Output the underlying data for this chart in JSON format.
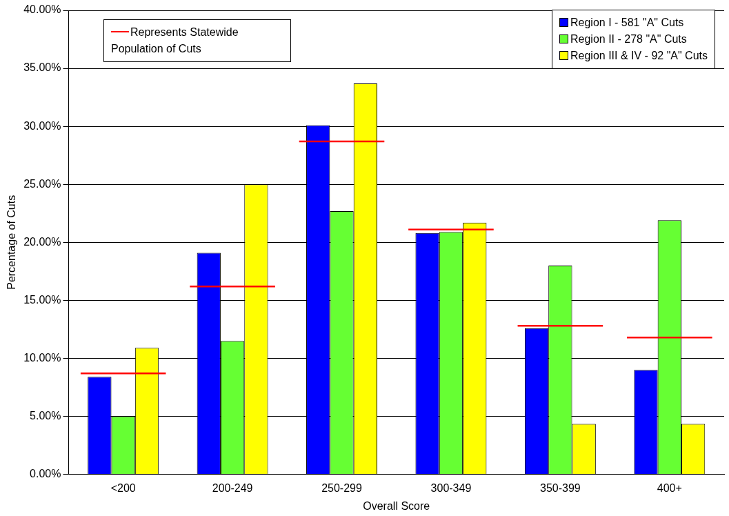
{
  "chart_data": {
    "type": "bar",
    "xlabel": "Overall Score",
    "ylabel": "Percentage of Cuts",
    "categories": [
      "<200",
      "200-249",
      "250-299",
      "300-349",
      "350-399",
      "400+"
    ],
    "series": [
      {
        "name": "Region I - 581 \"A\" Cuts",
        "color": "#0000ff",
        "values": [
          8.4,
          19.1,
          30.1,
          20.8,
          12.6,
          9.0
        ]
      },
      {
        "name": "Region II - 278 \"A\" Cuts",
        "color": "#66ff33",
        "values": [
          5.0,
          11.5,
          22.7,
          20.9,
          18.0,
          21.9
        ]
      },
      {
        "name": "Region III & IV - 92 \"A\" Cuts",
        "color": "#ffff00",
        "values": [
          10.9,
          25.0,
          33.7,
          21.7,
          4.35,
          4.35
        ]
      }
    ],
    "ref_lines": [
      {
        "axis": "y",
        "value": 8.7,
        "color": "#ff0000",
        "label": "Represents Statewide Population of Cuts"
      },
      {
        "axis": "y",
        "value": 16.2,
        "color": "#ff0000"
      },
      {
        "axis": "y",
        "value": 28.7,
        "color": "#ff0000"
      },
      {
        "axis": "y",
        "value": 21.1,
        "color": "#ff0000"
      },
      {
        "axis": "y",
        "value": 12.8,
        "color": "#ff0000"
      },
      {
        "axis": "y",
        "value": 11.8,
        "color": "#ff0000"
      }
    ],
    "ylim": [
      0,
      40
    ],
    "yticks": [
      {
        "value": 0,
        "label": "0.00%"
      },
      {
        "value": 5,
        "label": "5.00%"
      },
      {
        "value": 10,
        "label": "10.00%"
      },
      {
        "value": 15,
        "label": "15.00%"
      },
      {
        "value": 20,
        "label": "20.00%"
      },
      {
        "value": 25,
        "label": "25.00%"
      },
      {
        "value": 30,
        "label": "30.00%"
      },
      {
        "value": 35,
        "label": "35.00%"
      },
      {
        "value": 40,
        "label": "40.00%"
      }
    ],
    "grid": "y",
    "legend": "top right"
  }
}
